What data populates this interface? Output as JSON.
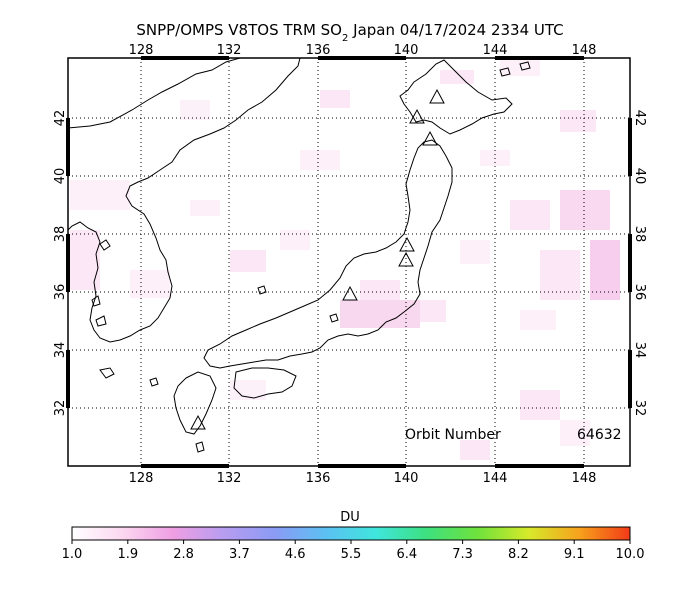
{
  "title": {
    "prefix": "SNPP/OMPS V8TOS TRM SO",
    "subscript": "2",
    "suffix": " Japan 04/17/2024 2334 UTC"
  },
  "map": {
    "lon_range": [
      124,
      150
    ],
    "lat_range": [
      30,
      44
    ],
    "lon_ticks": [
      "128",
      "132",
      "136",
      "140",
      "144",
      "148"
    ],
    "lat_ticks": [
      "42",
      "40",
      "38",
      "36",
      "34",
      "32"
    ],
    "gridlines": "dotted",
    "volcano_marker": "triangle-outline"
  },
  "orbit": {
    "label": "Orbit Number",
    "value": "64632"
  },
  "colorbar": {
    "title": "DU",
    "labels": [
      "1.0",
      "1.9",
      "2.8",
      "3.7",
      "4.6",
      "5.5",
      "6.4",
      "7.3",
      "8.2",
      "9.1",
      "10.0"
    ],
    "colors": [
      "#ffffff",
      "#fbd7f0",
      "#ee9ee3",
      "#b79df0",
      "#8b9bf4",
      "#5cc0f2",
      "#3fe6dc",
      "#3ee07f",
      "#6fe23c",
      "#d6e92a",
      "#f7a21d",
      "#f23a17"
    ]
  }
}
